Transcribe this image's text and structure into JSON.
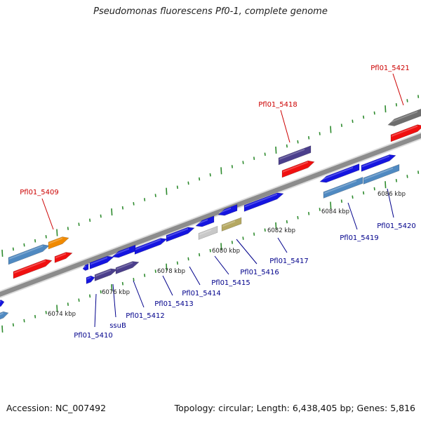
{
  "title": "Pseudomonas fluorescens Pf0-1, complete genome",
  "footer": {
    "accession": "Accession: NC_007492",
    "topology": "Topology: circular; Length: 6,438,405 bp; Genes: 5,816"
  },
  "colors": {
    "backbone": "#8c8c8c",
    "tick": "#2e8b2e",
    "label_red": "#cc0000",
    "label_blue": "#00008b",
    "blue": "#1515e0",
    "navy": "#4b3f8c",
    "steel": "#4f89c1",
    "red": "#f01010",
    "orange": "#f08a00",
    "gray": "#6e6e6e",
    "lightgray": "#c8c8c8",
    "khaki": "#b5a862"
  },
  "scale_labels": [
    "6074 kbp",
    "6076 kbp",
    "6078 kbp",
    "6080 kbp",
    "6082 kbp",
    "6084 kbp",
    "6086 kbp"
  ],
  "gene_labels": [
    {
      "text": "Pfl01_5409",
      "color": "red"
    },
    {
      "text": "Pfl01_5418",
      "color": "red"
    },
    {
      "text": "Pfl01_5421",
      "color": "red"
    },
    {
      "text": "Pfl01_5410",
      "color": "blue"
    },
    {
      "text": "ssuB",
      "color": "blue"
    },
    {
      "text": "Pfl01_5412",
      "color": "blue"
    },
    {
      "text": "Pfl01_5413",
      "color": "blue"
    },
    {
      "text": "Pfl01_5414",
      "color": "blue"
    },
    {
      "text": "Pfl01_5415",
      "color": "blue"
    },
    {
      "text": "Pfl01_5416",
      "color": "blue"
    },
    {
      "text": "Pfl01_5417",
      "color": "blue"
    },
    {
      "text": "Pfl01_5419",
      "color": "blue"
    },
    {
      "text": "Pfl01_5420",
      "color": "blue"
    }
  ]
}
